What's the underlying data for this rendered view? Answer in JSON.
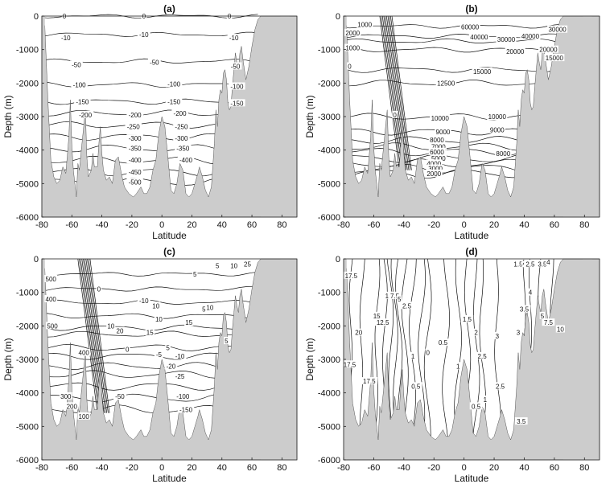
{
  "colors": {
    "land": "#cccccc",
    "contour": "#111111",
    "background": "#ffffff"
  },
  "chart_data": [
    {
      "type": "contour",
      "title": "(a)",
      "xlabel": "Latitude",
      "ylabel": "Depth (m)",
      "xlim": [
        -80,
        90
      ],
      "ylim": [
        -6000,
        0
      ],
      "xticks": [
        "-80",
        "-60",
        "-40",
        "-20",
        "0",
        "20",
        "40",
        "60",
        "80"
      ],
      "yticks": [
        "0",
        "-1000",
        "-2000",
        "-3000",
        "-4000",
        "-5000",
        "-6000"
      ],
      "contours": [
        {
          "label": "0",
          "depth": 0
        },
        {
          "label": "-10",
          "depth": -550
        },
        {
          "label": "-50",
          "depth": -1350
        },
        {
          "label": "-100",
          "depth": -2050
        },
        {
          "label": "-150",
          "depth": -2550
        },
        {
          "label": "-200",
          "depth": -2900
        },
        {
          "label": "-250",
          "depth": -3250
        },
        {
          "label": "-300",
          "depth": -3600
        },
        {
          "label": "-350",
          "depth": -3950
        },
        {
          "label": "-400",
          "depth": -4300
        },
        {
          "label": "-450",
          "depth": -4650
        },
        {
          "label": "-500",
          "depth": -4950
        }
      ],
      "labels": [
        {
          "text": "0",
          "x": -65,
          "y": 0
        },
        {
          "text": "0",
          "x": -12,
          "y": 0
        },
        {
          "text": "0",
          "x": 45,
          "y": 0
        },
        {
          "text": "-10",
          "x": -64,
          "y": -650
        },
        {
          "text": "-10",
          "x": -12,
          "y": -550
        },
        {
          "text": "-10",
          "x": 48,
          "y": -650
        },
        {
          "text": "-50",
          "x": -57,
          "y": -1450
        },
        {
          "text": "-50",
          "x": -5,
          "y": -1380
        },
        {
          "text": "-50",
          "x": 49,
          "y": -1500
        },
        {
          "text": "-100",
          "x": -55,
          "y": -2050
        },
        {
          "text": "-100",
          "x": 8,
          "y": -2030
        },
        {
          "text": "-100",
          "x": 50,
          "y": -2100
        },
        {
          "text": "-150",
          "x": -53,
          "y": -2550
        },
        {
          "text": "-150",
          "x": 8,
          "y": -2550
        },
        {
          "text": "-150",
          "x": 50,
          "y": -2600
        },
        {
          "text": "-200",
          "x": -51,
          "y": -2950
        },
        {
          "text": "-200",
          "x": -18,
          "y": -2950
        },
        {
          "text": "-200",
          "x": 12,
          "y": -2900
        },
        {
          "text": "-250",
          "x": -19,
          "y": -3300
        },
        {
          "text": "-250",
          "x": 13,
          "y": -3300
        },
        {
          "text": "-300",
          "x": -18,
          "y": -3650
        },
        {
          "text": "-300",
          "x": 13,
          "y": -3650
        },
        {
          "text": "-350",
          "x": -18,
          "y": -3950
        },
        {
          "text": "-350",
          "x": 14,
          "y": -3950
        },
        {
          "text": "-400",
          "x": -18,
          "y": -4300
        },
        {
          "text": "-400",
          "x": 16,
          "y": -4300
        },
        {
          "text": "-450",
          "x": -18,
          "y": -4650
        },
        {
          "text": "-500",
          "x": -18,
          "y": -4950
        }
      ]
    },
    {
      "type": "contour",
      "title": "(b)",
      "xlabel": "Latitude",
      "ylabel": "Depth (m)",
      "xlim": [
        -80,
        90
      ],
      "ylim": [
        -6000,
        0
      ],
      "xticks": [
        "-80",
        "-60",
        "-40",
        "-20",
        "0",
        "20",
        "40",
        "60",
        "80"
      ],
      "yticks": [
        "0",
        "-1000",
        "-2000",
        "-3000",
        "-4000",
        "-5000",
        "-6000"
      ],
      "contours": [
        {
          "label": "60000",
          "depth": -300
        },
        {
          "label": "40000",
          "depth": -600
        },
        {
          "label": "30000",
          "depth": -750
        },
        {
          "label": "20000",
          "depth": -1000
        },
        {
          "label": "15000",
          "depth": -1600
        },
        {
          "label": "12500",
          "depth": -2000
        },
        {
          "label": "10000",
          "depth": -3000
        },
        {
          "label": "9000",
          "depth": -3450
        },
        {
          "label": "8000",
          "depth": -3700
        },
        {
          "label": "7000",
          "depth": -3900
        },
        {
          "label": "6000",
          "depth": -4050
        },
        {
          "label": "5000",
          "depth": -4250
        },
        {
          "label": "4000",
          "depth": -4400
        },
        {
          "label": "3000",
          "depth": -4550
        },
        {
          "label": "2000",
          "depth": -4700
        }
      ],
      "labels": [
        {
          "text": "60000",
          "x": 4,
          "y": -320
        },
        {
          "text": "40000",
          "x": 10,
          "y": -620
        },
        {
          "text": "30000",
          "x": 28,
          "y": -700
        },
        {
          "text": "40000",
          "x": 44,
          "y": -600
        },
        {
          "text": "30000",
          "x": 62,
          "y": -400
        },
        {
          "text": "20000",
          "x": 34,
          "y": -1050
        },
        {
          "text": "20000",
          "x": 56,
          "y": -1000
        },
        {
          "text": "15000",
          "x": 60,
          "y": -1250
        },
        {
          "text": "15000",
          "x": 12,
          "y": -1650
        },
        {
          "text": "12500",
          "x": -12,
          "y": -2000
        },
        {
          "text": "10000",
          "x": -16,
          "y": -3050
        },
        {
          "text": "10000",
          "x": 22,
          "y": -3000
        },
        {
          "text": "9000",
          "x": -14,
          "y": -3450
        },
        {
          "text": "9000",
          "x": 22,
          "y": -3400
        },
        {
          "text": "8000",
          "x": -18,
          "y": -3700
        },
        {
          "text": "8000",
          "x": 26,
          "y": -4100
        },
        {
          "text": "7000",
          "x": -17,
          "y": -3900
        },
        {
          "text": "6000",
          "x": -18,
          "y": -4050
        },
        {
          "text": "5000",
          "x": -17,
          "y": -4250
        },
        {
          "text": "4000",
          "x": -20,
          "y": -4400
        },
        {
          "text": "3000",
          "x": -19,
          "y": -4550
        },
        {
          "text": "2000",
          "x": -20,
          "y": -4700
        },
        {
          "text": "1000",
          "x": -66,
          "y": -250
        },
        {
          "text": "2000",
          "x": -74,
          "y": -500
        },
        {
          "text": "1000",
          "x": -74,
          "y": -950
        },
        {
          "text": "0",
          "x": -76,
          "y": -1500
        },
        {
          "text": "0",
          "x": -46,
          "y": -2950
        }
      ]
    },
    {
      "type": "contour",
      "title": "(c)",
      "xlabel": "Latitude",
      "ylabel": "Depth (m)",
      "xlim": [
        -80,
        90
      ],
      "ylim": [
        -6000,
        0
      ],
      "xticks": [
        "-80",
        "-60",
        "-40",
        "-20",
        "0",
        "20",
        "40",
        "60",
        "80"
      ],
      "yticks": [
        "0",
        "-1000",
        "-2000",
        "-3000",
        "-4000",
        "-5000",
        "-6000"
      ],
      "contours": [
        {
          "label": "5",
          "depth": -450
        },
        {
          "label": "0",
          "depth": -900
        },
        {
          "label": "-10",
          "depth": -1300
        },
        {
          "label": "10",
          "depth": -1700
        },
        {
          "label": "15",
          "depth": -2050
        },
        {
          "label": "20",
          "depth": -2250
        },
        {
          "label": "5",
          "depth": -2650
        },
        {
          "label": "-5",
          "depth": -2900
        },
        {
          "label": "-10",
          "depth": -3200
        },
        {
          "label": "-25",
          "depth": -3450
        },
        {
          "label": "-50",
          "depth": -3800
        },
        {
          "label": "-100",
          "depth": -4150
        },
        {
          "label": "-150",
          "depth": -4500
        }
      ],
      "labels": [
        {
          "text": "5",
          "x": 22,
          "y": -450
        },
        {
          "text": "0",
          "x": -42,
          "y": -900
        },
        {
          "text": "-10",
          "x": -12,
          "y": -1250
        },
        {
          "text": "10",
          "x": -4,
          "y": -1400
        },
        {
          "text": "5",
          "x": 28,
          "y": -1500
        },
        {
          "text": "10",
          "x": 32,
          "y": -1450
        },
        {
          "text": "10",
          "x": -2,
          "y": -1800
        },
        {
          "text": "15",
          "x": 18,
          "y": -1900
        },
        {
          "text": "15",
          "x": -8,
          "y": -2200
        },
        {
          "text": "20",
          "x": -28,
          "y": -2150
        },
        {
          "text": "10",
          "x": -34,
          "y": -2000
        },
        {
          "text": "5",
          "x": 4,
          "y": -2650
        },
        {
          "text": "-5",
          "x": -2,
          "y": -2850
        },
        {
          "text": "0",
          "x": -23,
          "y": -2700
        },
        {
          "text": "-10",
          "x": 12,
          "y": -2900
        },
        {
          "text": "-25",
          "x": 12,
          "y": -3500
        },
        {
          "text": "-50",
          "x": -28,
          "y": -4100
        },
        {
          "text": "-100",
          "x": 14,
          "y": -4100
        },
        {
          "text": "-150",
          "x": 16,
          "y": -4500
        },
        {
          "text": "-20",
          "x": 6,
          "y": -3200
        },
        {
          "text": "500",
          "x": -74,
          "y": -600
        },
        {
          "text": "400",
          "x": -74,
          "y": -1200
        },
        {
          "text": "500",
          "x": -73,
          "y": -2000
        },
        {
          "text": "400",
          "x": -52,
          "y": -2800
        },
        {
          "text": "300",
          "x": -64,
          "y": -4100
        },
        {
          "text": "200",
          "x": -60,
          "y": -4400
        },
        {
          "text": "100",
          "x": -52,
          "y": -4700
        },
        {
          "text": "5",
          "x": 37,
          "y": -200
        },
        {
          "text": "10",
          "x": 48,
          "y": -200
        },
        {
          "text": "25",
          "x": 57,
          "y": -150
        },
        {
          "text": "5",
          "x": 43,
          "y": -2450
        }
      ]
    },
    {
      "type": "contour",
      "title": "(d)",
      "xlabel": "Latitude",
      "ylabel": "Depth (m)",
      "xlim": [
        -80,
        90
      ],
      "ylim": [
        -6000,
        0
      ],
      "xticks": [
        "-80",
        "-60",
        "-40",
        "-20",
        "0",
        "20",
        "40",
        "60",
        "80"
      ],
      "yticks": [
        "0",
        "-1000",
        "-2000",
        "-3000",
        "-4000",
        "-5000",
        "-6000"
      ],
      "contours": [
        {
          "label": "17.5",
          "x": -75
        },
        {
          "label": "20",
          "x": -68
        },
        {
          "label": "15",
          "x": -58
        },
        {
          "label": "12.5",
          "x": -53
        },
        {
          "label": "10",
          "x": -49
        },
        {
          "label": "7.5",
          "x": -46
        },
        {
          "label": "5",
          "x": -43
        },
        {
          "label": "2.5",
          "x": -39
        },
        {
          "label": "1",
          "x": -34
        },
        {
          "label": "0.5",
          "x": -28
        },
        {
          "label": "0",
          "x": -24
        },
        {
          "label": "0.5",
          "x": -12
        },
        {
          "label": "1",
          "x": -4
        },
        {
          "label": "1.5",
          "x": 2
        },
        {
          "label": "2",
          "x": 8
        },
        {
          "label": "2.5",
          "x": 12
        },
        {
          "label": "3",
          "x": 22
        },
        {
          "label": "3.5",
          "x": 40
        },
        {
          "label": "4",
          "x": 44
        },
        {
          "label": "5",
          "x": 50
        },
        {
          "label": "7.5",
          "x": 58
        },
        {
          "label": "10",
          "x": 66
        }
      ],
      "labels": [
        {
          "text": "17.5",
          "x": -75,
          "y": -500
        },
        {
          "text": "20",
          "x": -70,
          "y": -2200
        },
        {
          "text": "17.5",
          "x": -63,
          "y": -3650
        },
        {
          "text": "15",
          "x": -58,
          "y": -1700
        },
        {
          "text": "12.5",
          "x": -54,
          "y": -1900
        },
        {
          "text": "10",
          "x": -50,
          "y": -1100
        },
        {
          "text": "7.5",
          "x": -46,
          "y": -1100
        },
        {
          "text": "5",
          "x": -43,
          "y": -1200
        },
        {
          "text": "2.5",
          "x": -38,
          "y": -1400
        },
        {
          "text": "1",
          "x": -34,
          "y": -2900
        },
        {
          "text": "0",
          "x": -24,
          "y": -2800
        },
        {
          "text": "0.5",
          "x": -32,
          "y": -3800
        },
        {
          "text": "0.5",
          "x": -14,
          "y": -2500
        },
        {
          "text": "1",
          "x": -4,
          "y": -3200
        },
        {
          "text": "1.5",
          "x": 2,
          "y": -1800
        },
        {
          "text": "2",
          "x": 8,
          "y": -2200
        },
        {
          "text": "2.5",
          "x": 12,
          "y": -2900
        },
        {
          "text": "2.5",
          "x": 24,
          "y": -3800
        },
        {
          "text": "3",
          "x": 22,
          "y": -2300
        },
        {
          "text": "3",
          "x": 36,
          "y": -2200
        },
        {
          "text": "3.5",
          "x": 40,
          "y": -1500
        },
        {
          "text": "4",
          "x": 44,
          "y": -1000
        },
        {
          "text": "5",
          "x": 52,
          "y": -1700
        },
        {
          "text": "7.5",
          "x": 56,
          "y": -1900
        },
        {
          "text": "10",
          "x": 64,
          "y": -2100
        },
        {
          "text": "1",
          "x": 14,
          "y": -4200
        },
        {
          "text": "0.5",
          "x": 8,
          "y": -4400
        },
        {
          "text": "3.5",
          "x": 38,
          "y": -4850
        },
        {
          "text": "1.5",
          "x": 36,
          "y": -150
        },
        {
          "text": "2",
          "x": 40,
          "y": -100
        },
        {
          "text": "2.5",
          "x": 44,
          "y": -150
        },
        {
          "text": "3.5",
          "x": 52,
          "y": -150
        },
        {
          "text": "4",
          "x": 56,
          "y": -100
        },
        {
          "text": "17.5",
          "x": -76,
          "y": -3150
        }
      ]
    }
  ]
}
